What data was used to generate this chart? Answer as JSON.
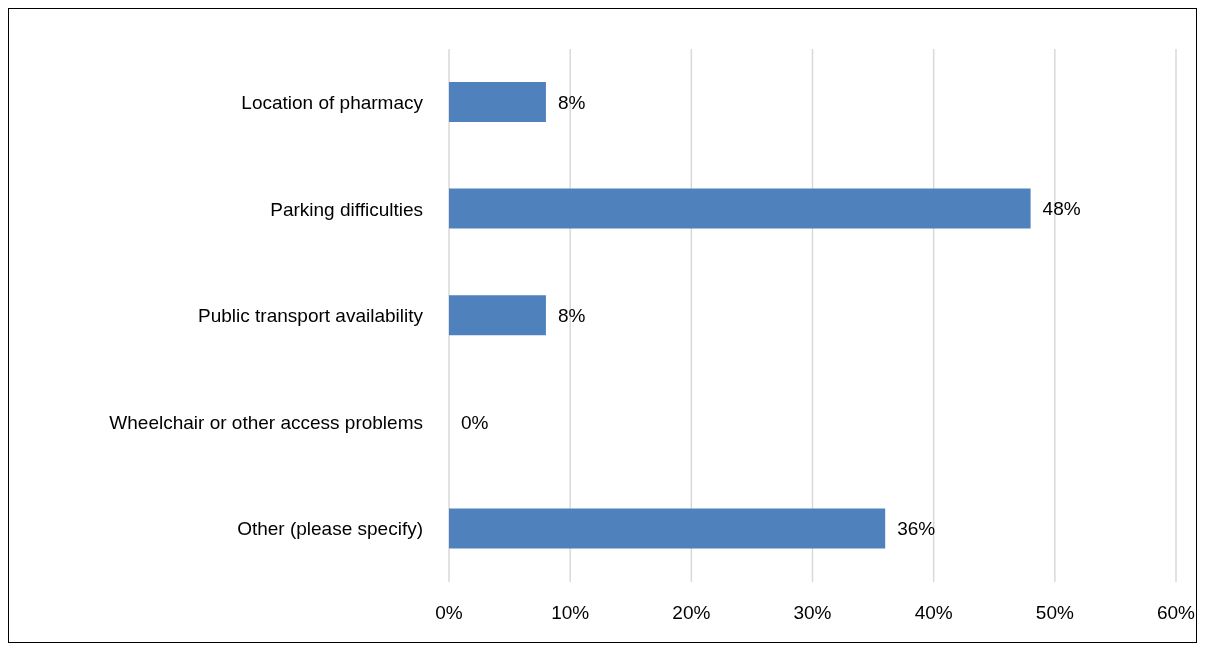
{
  "chart_data": {
    "type": "bar",
    "orientation": "horizontal",
    "categories": [
      "Location of pharmacy",
      "Parking difficulties",
      "Public transport availability",
      "Wheelchair or other access problems",
      "Other (please specify)"
    ],
    "values": [
      8,
      48,
      8,
      0,
      36
    ],
    "value_labels": [
      "8%",
      "48%",
      "8%",
      "0%",
      "36%"
    ],
    "color": "#4f81bd",
    "xlim": [
      0,
      60
    ],
    "xticks": [
      {
        "value": 0,
        "label": "0%"
      },
      {
        "value": 10,
        "label": "10%"
      },
      {
        "value": 20,
        "label": "20%"
      },
      {
        "value": 30,
        "label": "30%"
      },
      {
        "value": 40,
        "label": "40%"
      },
      {
        "value": 50,
        "label": "50%"
      },
      {
        "value": 60,
        "label": "60%"
      }
    ],
    "grid": "x"
  }
}
